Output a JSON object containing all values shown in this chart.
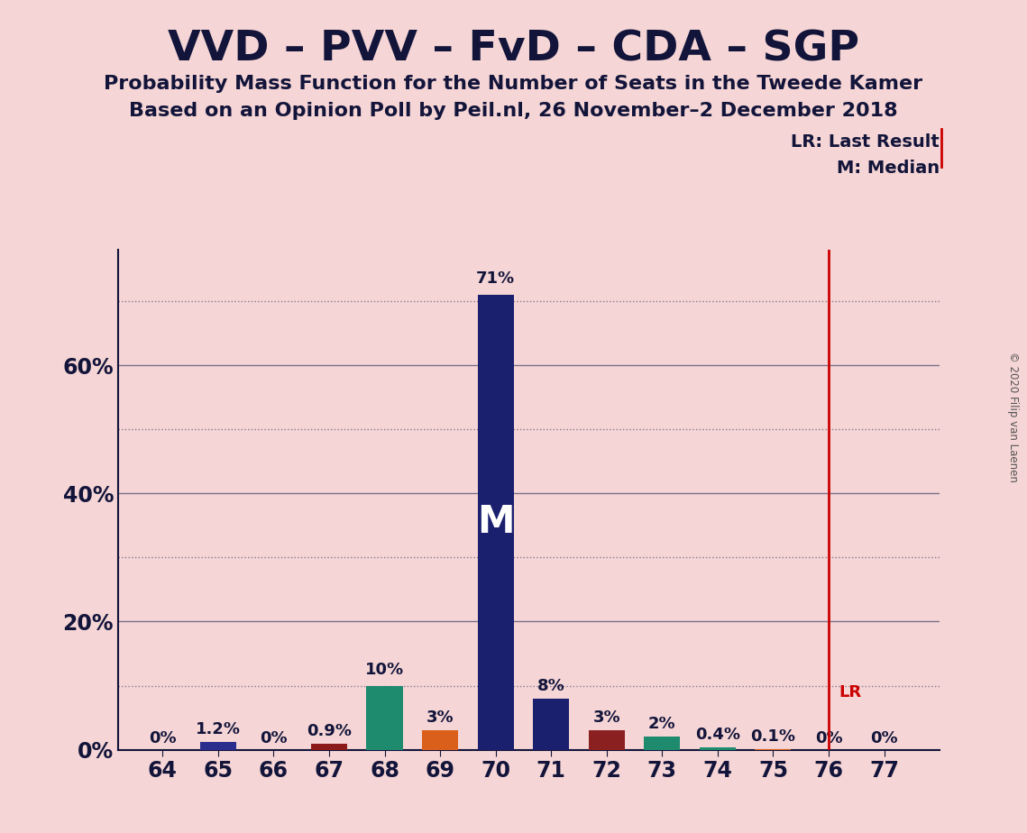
{
  "title": "VVD – PVV – FvD – CDA – SGP",
  "subtitle1": "Probability Mass Function for the Number of Seats in the Tweede Kamer",
  "subtitle2": "Based on an Opinion Poll by Peil.nl, 26 November–2 December 2018",
  "copyright": "© 2020 Filip van Laenen",
  "seats": [
    64,
    65,
    66,
    67,
    68,
    69,
    70,
    71,
    72,
    73,
    74,
    75,
    76,
    77
  ],
  "values": [
    0.0,
    1.2,
    0.0,
    0.9,
    10.0,
    3.0,
    71.0,
    8.0,
    3.0,
    2.0,
    0.4,
    0.1,
    0.0,
    0.0
  ],
  "labels": [
    "0%",
    "1.2%",
    "0%",
    "0.9%",
    "10%",
    "3%",
    "71%",
    "8%",
    "3%",
    "2%",
    "0.4%",
    "0.1%",
    "0%",
    "0%"
  ],
  "bar_colors": [
    "#2b2d8e",
    "#2b2d8e",
    "#2b2d8e",
    "#8b1a1a",
    "#1e8a6e",
    "#d95f1a",
    "#1a1f6e",
    "#1a1f6e",
    "#8b2020",
    "#1e8a6e",
    "#1e8a6e",
    "#d95f1a",
    "#2b2d8e",
    "#2b2d8e"
  ],
  "median_seat": 70,
  "last_result_seat": 76,
  "background_color": "#f5d5d5",
  "legend_lr": "LR: Last Result",
  "legend_m": "M: Median",
  "legend_lr_short": "LR",
  "solid_grid_lines": [
    20,
    40,
    60
  ],
  "dotted_grid_lines": [
    10,
    30,
    50,
    70
  ],
  "ytick_positions": [
    0,
    20,
    40,
    60
  ],
  "ytick_labels": [
    "0%",
    "20%",
    "40%",
    "60%"
  ],
  "ylim_max": 78
}
